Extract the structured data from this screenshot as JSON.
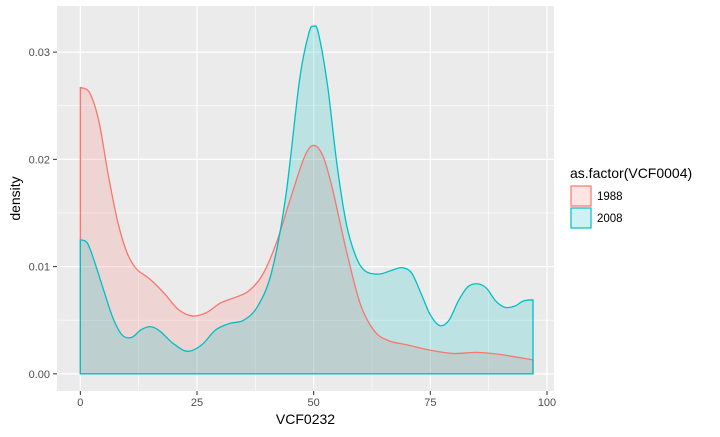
{
  "chart_data": {
    "type": "area",
    "title": "",
    "xlabel": "VCF0232",
    "ylabel": "density",
    "xlim": [
      -5,
      101.5
    ],
    "ylim": [
      -0.0016,
      0.0343
    ],
    "x_ticks": [
      0,
      25,
      50,
      75,
      100
    ],
    "x_tick_labels": [
      "0",
      "25",
      "50",
      "75",
      "100"
    ],
    "y_ticks": [
      0,
      0.01,
      0.02,
      0.03
    ],
    "y_tick_labels": [
      "0.00",
      "0.01",
      "0.02",
      "0.03"
    ],
    "grid": true,
    "legend": {
      "title": "as.factor(VCF0004)",
      "position": "right",
      "entries": [
        "1988",
        "2008"
      ]
    },
    "series": [
      {
        "name": "1988",
        "color": "#F8766D",
        "points": [
          [
            0,
            0.0267
          ],
          [
            2,
            0.0262
          ],
          [
            4,
            0.0235
          ],
          [
            6,
            0.0185
          ],
          [
            8,
            0.0142
          ],
          [
            10,
            0.0113
          ],
          [
            12,
            0.0098
          ],
          [
            15,
            0.0088
          ],
          [
            18,
            0.0075
          ],
          [
            21,
            0.006
          ],
          [
            24,
            0.0054
          ],
          [
            27,
            0.0057
          ],
          [
            30,
            0.0066
          ],
          [
            33,
            0.0071
          ],
          [
            36,
            0.0077
          ],
          [
            39,
            0.0092
          ],
          [
            42,
            0.0122
          ],
          [
            45,
            0.0163
          ],
          [
            48,
            0.0202
          ],
          [
            50,
            0.0213
          ],
          [
            52,
            0.0203
          ],
          [
            54,
            0.0173
          ],
          [
            57,
            0.0115
          ],
          [
            60,
            0.0065
          ],
          [
            63,
            0.004
          ],
          [
            66,
            0.0031
          ],
          [
            70,
            0.0027
          ],
          [
            75,
            0.0022
          ],
          [
            80,
            0.0019
          ],
          [
            85,
            0.002
          ],
          [
            90,
            0.0018
          ],
          [
            97,
            0.0013
          ]
        ]
      },
      {
        "name": "2008",
        "color": "#00BFC4",
        "points": [
          [
            0,
            0.0125
          ],
          [
            1.5,
            0.0122
          ],
          [
            3,
            0.0105
          ],
          [
            5,
            0.0078
          ],
          [
            7,
            0.0052
          ],
          [
            9,
            0.0036
          ],
          [
            11,
            0.0034
          ],
          [
            13,
            0.0041
          ],
          [
            15,
            0.0044
          ],
          [
            17,
            0.004
          ],
          [
            20,
            0.0028
          ],
          [
            23,
            0.0021
          ],
          [
            26,
            0.0027
          ],
          [
            29,
            0.0041
          ],
          [
            32,
            0.0047
          ],
          [
            35,
            0.005
          ],
          [
            38,
            0.0063
          ],
          [
            41,
            0.0095
          ],
          [
            44,
            0.0165
          ],
          [
            47,
            0.0275
          ],
          [
            49,
            0.0318
          ],
          [
            50,
            0.0324
          ],
          [
            51,
            0.0318
          ],
          [
            53,
            0.0268
          ],
          [
            55,
            0.0195
          ],
          [
            57,
            0.014
          ],
          [
            59,
            0.011
          ],
          [
            61,
            0.0096
          ],
          [
            64,
            0.0093
          ],
          [
            67,
            0.0097
          ],
          [
            69,
            0.0099
          ],
          [
            71,
            0.0094
          ],
          [
            73,
            0.0075
          ],
          [
            75,
            0.0055
          ],
          [
            77,
            0.0045
          ],
          [
            79,
            0.005
          ],
          [
            81,
            0.0068
          ],
          [
            83,
            0.0081
          ],
          [
            85,
            0.0084
          ],
          [
            87,
            0.008
          ],
          [
            89,
            0.0068
          ],
          [
            91,
            0.0062
          ],
          [
            93,
            0.0063
          ],
          [
            95,
            0.0068
          ],
          [
            97,
            0.0069
          ]
        ]
      }
    ]
  }
}
